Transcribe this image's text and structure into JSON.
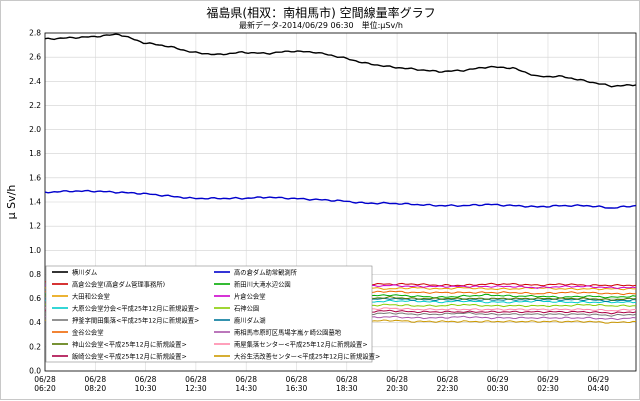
{
  "page": {
    "title": "福島県(相双：南相馬市) 空間線量率グラフ",
    "subtitle": "最新データ-2014/06/29 06:30　単位:μSv/h"
  },
  "chart_data": {
    "type": "line",
    "title": "福島県(相双：南相馬市) 空間線量率グラフ",
    "subtitle": "最新データ-2014/06/29 06:30　単位:μSv/h",
    "ylabel": "μ Sv/h",
    "xlabel": "",
    "ylim": [
      0.0,
      2.8
    ],
    "yticks": [
      "0.0",
      "0.2",
      "0.4",
      "0.6",
      "0.8",
      "1.0",
      "1.2",
      "1.4",
      "1.6",
      "1.8",
      "2.0",
      "2.2",
      "2.4",
      "2.6",
      "2.8"
    ],
    "x_ticks": [
      {
        "date": "06/28",
        "time": "06:20"
      },
      {
        "date": "06/28",
        "time": "08:20"
      },
      {
        "date": "06/28",
        "time": "10:30"
      },
      {
        "date": "06/28",
        "time": "12:30"
      },
      {
        "date": "06/28",
        "time": "14:30"
      },
      {
        "date": "06/28",
        "time": "16:30"
      },
      {
        "date": "06/28",
        "time": "18:30"
      },
      {
        "date": "06/28",
        "time": "20:30"
      },
      {
        "date": "06/28",
        "time": "22:30"
      },
      {
        "date": "06/29",
        "time": "00:30"
      },
      {
        "date": "06/29",
        "time": "02:30"
      },
      {
        "date": "06/29",
        "time": "04:40"
      }
    ],
    "grid": true,
    "legend_position": "lower-left",
    "series": [
      {
        "name": "横川ダム",
        "color": "#000000",
        "values": [
          2.75,
          2.76,
          2.77,
          2.79,
          2.72,
          2.69,
          2.64,
          2.62,
          2.64,
          2.63,
          2.65,
          2.64,
          2.6,
          2.55,
          2.52,
          2.5,
          2.48,
          2.49,
          2.52,
          2.51,
          2.44,
          2.44,
          2.4,
          2.36,
          2.37
        ]
      },
      {
        "name": "高の倉ダム助常観測所",
        "color": "#0000cc",
        "values": [
          1.48,
          1.49,
          1.49,
          1.48,
          1.47,
          1.45,
          1.43,
          1.43,
          1.43,
          1.44,
          1.43,
          1.42,
          1.41,
          1.39,
          1.39,
          1.38,
          1.37,
          1.37,
          1.38,
          1.37,
          1.36,
          1.37,
          1.37,
          1.35,
          1.37
        ]
      },
      {
        "name": "高倉公会堂(高倉ダム管理事務所)",
        "color": "#cc0000",
        "values": [
          0.74,
          0.74,
          0.75,
          0.74,
          0.74,
          0.73,
          0.73,
          0.73,
          0.74,
          0.73,
          0.73,
          0.73,
          0.72,
          0.72,
          0.72,
          0.72,
          0.71,
          0.71,
          0.72,
          0.72,
          0.71,
          0.72,
          0.71,
          0.71,
          0.71
        ]
      },
      {
        "name": "新田川大滝水辺公園",
        "color": "#00aa00",
        "values": [
          0.64,
          0.63,
          0.62,
          0.63,
          0.64,
          0.63,
          0.62,
          0.63,
          0.64,
          0.63,
          0.62,
          0.63,
          0.62,
          0.62,
          0.63,
          0.62,
          0.61,
          0.62,
          0.63,
          0.62,
          0.62,
          0.61,
          0.62,
          0.61,
          0.62
        ]
      },
      {
        "name": "大田和公会堂",
        "color": "#e8a000",
        "values": [
          0.69,
          0.7,
          0.7,
          0.69,
          0.69,
          0.7,
          0.7,
          0.7,
          0.69,
          0.69,
          0.7,
          0.69,
          0.69,
          0.69,
          0.68,
          0.69,
          0.68,
          0.69,
          0.68,
          0.68,
          0.69,
          0.68,
          0.68,
          0.68,
          0.68
        ]
      },
      {
        "name": "片倉公会堂",
        "color": "#cc00cc",
        "values": [
          0.71,
          0.72,
          0.71,
          0.72,
          0.71,
          0.71,
          0.71,
          0.71,
          0.72,
          0.71,
          0.71,
          0.7,
          0.71,
          0.7,
          0.71,
          0.7,
          0.7,
          0.7,
          0.7,
          0.7,
          0.69,
          0.7,
          0.7,
          0.69,
          0.69
        ]
      },
      {
        "name": "大原公会堂分会<平成25年12月に新規設置>",
        "color": "#00cccc",
        "values": [
          0.58,
          0.59,
          0.58,
          0.59,
          0.58,
          0.58,
          0.59,
          0.58,
          0.58,
          0.59,
          0.58,
          0.58,
          0.58,
          0.57,
          0.58,
          0.58,
          0.57,
          0.58,
          0.57,
          0.57,
          0.58,
          0.57,
          0.57,
          0.57,
          0.57
        ]
      },
      {
        "name": "石神公園",
        "color": "#88cc00",
        "values": [
          0.55,
          0.56,
          0.55,
          0.56,
          0.55,
          0.55,
          0.55,
          0.56,
          0.55,
          0.55,
          0.55,
          0.55,
          0.55,
          0.54,
          0.55,
          0.54,
          0.54,
          0.55,
          0.54,
          0.54,
          0.54,
          0.54,
          0.55,
          0.54,
          0.54
        ]
      },
      {
        "name": "押釜字間田集落<平成25年12月に新規設置>",
        "color": "#777777",
        "values": [
          0.48,
          0.49,
          0.48,
          0.49,
          0.48,
          0.48,
          0.49,
          0.48,
          0.48,
          0.48,
          0.48,
          0.47,
          0.48,
          0.47,
          0.48,
          0.47,
          0.47,
          0.48,
          0.47,
          0.47,
          0.47,
          0.47,
          0.47,
          0.46,
          0.47
        ]
      },
      {
        "name": "鹿川ダム湖",
        "color": "#007799",
        "values": [
          0.6,
          0.61,
          0.6,
          0.61,
          0.6,
          0.6,
          0.6,
          0.61,
          0.6,
          0.6,
          0.6,
          0.59,
          0.6,
          0.59,
          0.6,
          0.59,
          0.59,
          0.59,
          0.59,
          0.59,
          0.59,
          0.59,
          0.59,
          0.58,
          0.59
        ]
      },
      {
        "name": "金谷公会堂",
        "color": "#ee6600",
        "values": [
          0.66,
          0.67,
          0.66,
          0.67,
          0.66,
          0.66,
          0.66,
          0.67,
          0.66,
          0.66,
          0.66,
          0.65,
          0.66,
          0.65,
          0.66,
          0.65,
          0.65,
          0.65,
          0.65,
          0.65,
          0.64,
          0.65,
          0.65,
          0.64,
          0.64
        ]
      },
      {
        "name": "南相馬市原町区馬場字嵐ヶ崎公園墓地",
        "color": "#aa55aa",
        "values": [
          0.45,
          0.46,
          0.45,
          0.46,
          0.45,
          0.45,
          0.45,
          0.46,
          0.45,
          0.45,
          0.45,
          0.44,
          0.45,
          0.44,
          0.45,
          0.44,
          0.44,
          0.45,
          0.44,
          0.44,
          0.44,
          0.44,
          0.44,
          0.43,
          0.44
        ]
      },
      {
        "name": "神山公会堂<平成25年12月に新規設置>",
        "color": "#557700",
        "values": [
          0.62,
          0.61,
          0.62,
          0.61,
          0.62,
          0.61,
          0.61,
          0.62,
          0.61,
          0.61,
          0.61,
          0.61,
          0.61,
          0.6,
          0.61,
          0.6,
          0.6,
          0.6,
          0.6,
          0.6,
          0.6,
          0.6,
          0.6,
          0.59,
          0.6
        ]
      },
      {
        "name": "南屋集落センター<平成25年12月に新規設置>",
        "color": "#ff88aa",
        "values": [
          0.52,
          0.53,
          0.52,
          0.53,
          0.52,
          0.52,
          0.52,
          0.53,
          0.52,
          0.52,
          0.52,
          0.51,
          0.52,
          0.51,
          0.52,
          0.51,
          0.51,
          0.51,
          0.51,
          0.51,
          0.51,
          0.51,
          0.51,
          0.5,
          0.51
        ]
      },
      {
        "name": "飯崎公会堂<平成25年12月に新規設置>",
        "color": "#aa0044",
        "values": [
          0.5,
          0.51,
          0.5,
          0.51,
          0.5,
          0.5,
          0.5,
          0.51,
          0.5,
          0.5,
          0.5,
          0.49,
          0.5,
          0.49,
          0.5,
          0.49,
          0.49,
          0.49,
          0.49,
          0.49,
          0.49,
          0.49,
          0.49,
          0.48,
          0.49
        ]
      },
      {
        "name": "大谷生活改善センター<平成25年12月に新規設置>",
        "color": "#cc9900",
        "values": [
          0.42,
          0.43,
          0.42,
          0.43,
          0.42,
          0.42,
          0.42,
          0.43,
          0.42,
          0.42,
          0.42,
          0.41,
          0.42,
          0.41,
          0.42,
          0.41,
          0.41,
          0.41,
          0.41,
          0.41,
          0.41,
          0.41,
          0.41,
          0.4,
          0.41
        ]
      }
    ]
  }
}
